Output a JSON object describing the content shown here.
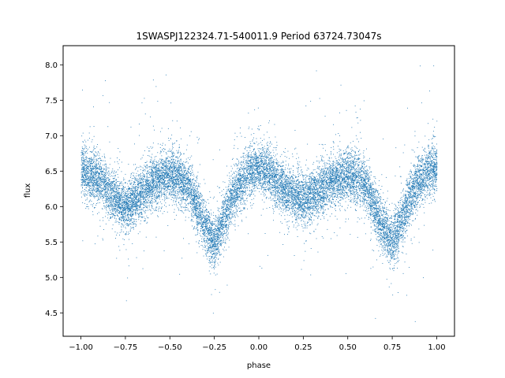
{
  "chart_data": {
    "type": "scatter",
    "title": "1SWASPJ122324.71-540011.9 Period 63724.73047s",
    "xlabel": "phase",
    "ylabel": "flux",
    "xlim": [
      -1.1,
      1.1
    ],
    "ylim": [
      4.17,
      8.27
    ],
    "x_ticks": [
      -1.0,
      -0.75,
      -0.5,
      -0.25,
      0.0,
      0.25,
      0.5,
      0.75,
      1.0
    ],
    "x_tick_labels": [
      "−1.00",
      "−0.75",
      "−0.50",
      "−0.25",
      "0.00",
      "0.25",
      "0.50",
      "0.75",
      "1.00"
    ],
    "y_ticks": [
      4.5,
      5.0,
      5.5,
      6.0,
      6.5,
      7.0,
      7.5,
      8.0
    ],
    "y_tick_labels": [
      "4.5",
      "5.0",
      "5.5",
      "6.0",
      "6.5",
      "7.0",
      "7.5",
      "8.0"
    ],
    "grid": false,
    "marker_color": "#1f77b4",
    "series": [
      {
        "x": [
          -1.0,
          -0.9,
          -0.8,
          -0.75,
          -0.7,
          -0.6,
          -0.5,
          -0.45,
          -0.4,
          -0.35,
          -0.3,
          -0.25,
          -0.2,
          -0.15,
          -0.1,
          -0.05,
          0.0,
          0.05,
          0.1,
          0.2,
          0.25,
          0.3,
          0.4,
          0.5,
          0.55,
          0.6,
          0.65,
          0.7,
          0.75,
          0.8,
          0.85,
          0.9,
          0.95,
          1.0
        ],
        "y": [
          6.52,
          6.4,
          6.08,
          6.0,
          6.1,
          6.35,
          6.45,
          6.4,
          6.3,
          6.0,
          5.7,
          5.5,
          5.8,
          6.15,
          6.35,
          6.5,
          6.55,
          6.5,
          6.35,
          6.15,
          6.1,
          6.15,
          6.35,
          6.45,
          6.4,
          6.3,
          6.0,
          5.7,
          5.5,
          5.8,
          6.15,
          6.35,
          6.5,
          6.55
        ],
        "scatter_sd": 0.18,
        "approx_point_count": 16000
      }
    ]
  }
}
